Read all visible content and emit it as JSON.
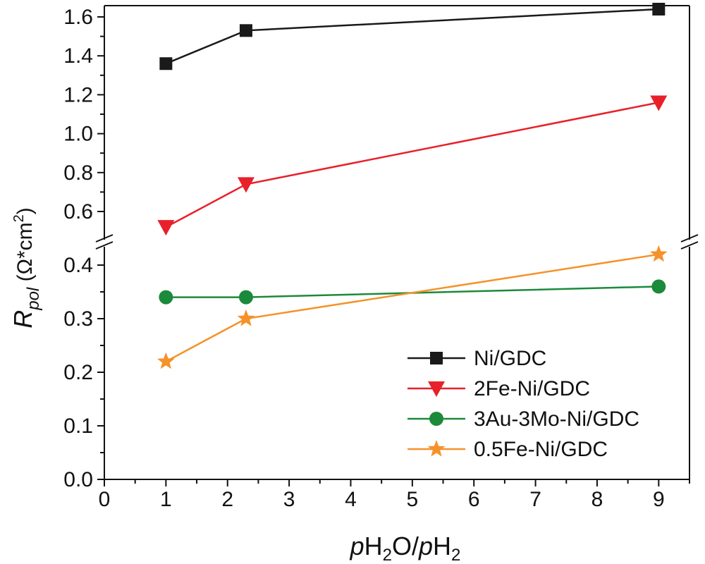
{
  "chart_data": {
    "type": "line",
    "title": "",
    "xlabel": {
      "p1": "p",
      "h1": "H",
      "s1": "2",
      "o": "O/",
      "p2": "p",
      "h2": "H",
      "s2": "2"
    },
    "ylabel": {
      "r": "R",
      "sub": "pol",
      "open": " (Ω*cm",
      "sup": "2",
      "close": ")"
    },
    "xlim": [
      0,
      9.5
    ],
    "x_ticks": [
      "0",
      "1",
      "2",
      "3",
      "4",
      "5",
      "6",
      "7",
      "8",
      "9"
    ],
    "y_axis_break": true,
    "upper_ylim": [
      0.5,
      1.65
    ],
    "upper_y_ticks": [
      "0.6",
      "0.8",
      "1.0",
      "1.2",
      "1.4",
      "1.6"
    ],
    "lower_ylim": [
      0.0,
      0.44
    ],
    "lower_y_ticks": [
      "0.0",
      "0.1",
      "0.2",
      "0.3",
      "0.4"
    ],
    "legend_position": "bottom-right",
    "series": [
      {
        "name": "Ni/GDC",
        "marker": "square",
        "color": "#1a1a1a",
        "x": [
          1,
          2.3,
          9
        ],
        "y": [
          1.36,
          1.53,
          1.64
        ]
      },
      {
        "name": "2Fe-Ni/GDC",
        "marker": "triangle-down",
        "color": "#e8202a",
        "x": [
          1,
          2.3,
          9
        ],
        "y": [
          0.52,
          0.74,
          1.16
        ]
      },
      {
        "name": "3Au-3Mo-Ni/GDC",
        "marker": "circle",
        "color": "#1b8a3a",
        "x": [
          1,
          2.3,
          9
        ],
        "y": [
          0.34,
          0.34,
          0.36
        ]
      },
      {
        "name": "0.5Fe-Ni/GDC",
        "marker": "star",
        "color": "#f5922a",
        "x": [
          1,
          2.3,
          9
        ],
        "y": [
          0.22,
          0.3,
          0.42
        ]
      }
    ]
  }
}
